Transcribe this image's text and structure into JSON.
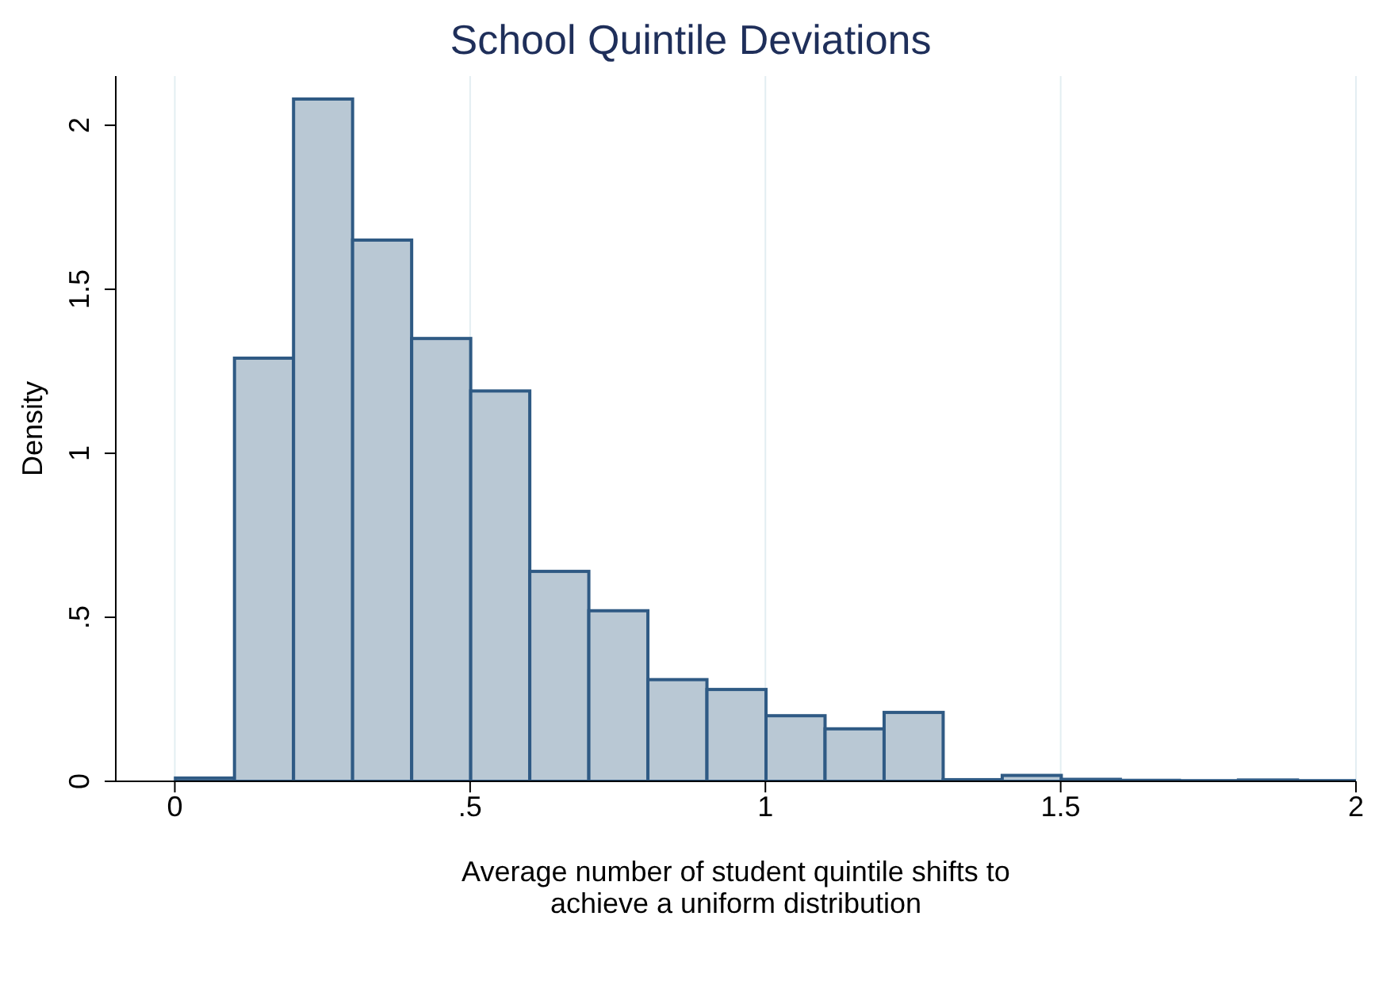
{
  "chart_data": {
    "type": "histogram",
    "title": "School Quintile Deviations",
    "xlabel": "Average number of student quintile shifts to\nachieve a uniform distribution",
    "ylabel": "Density",
    "bins": [
      0,
      0.1,
      0.2,
      0.3,
      0.4,
      0.5,
      0.6,
      0.7,
      0.8,
      0.9,
      1.0,
      1.1,
      1.2,
      1.3,
      1.4,
      1.5,
      1.6,
      1.7,
      1.8,
      1.9,
      2.0
    ],
    "values": [
      0.01,
      1.29,
      2.08,
      1.65,
      1.35,
      1.19,
      0.64,
      0.52,
      0.31,
      0.28,
      0.2,
      0.16,
      0.21,
      0.005,
      0.018,
      0.006,
      0.003,
      0.002,
      0.004,
      0.002
    ],
    "color": "#b9c8d4",
    "xlim": [
      -0.1,
      2
    ],
    "xticks": [
      0,
      {
        "value": 0.5,
        "label": ".5"
      },
      1,
      {
        "value": 1.5,
        "label": "1.5"
      },
      2
    ],
    "ylim": [
      0,
      2.15
    ],
    "yticks": [
      0,
      {
        "value": 0.5,
        "label": ".5"
      },
      1,
      {
        "value": 1.5,
        "label": "1.5"
      },
      2
    ],
    "grid": "x"
  }
}
